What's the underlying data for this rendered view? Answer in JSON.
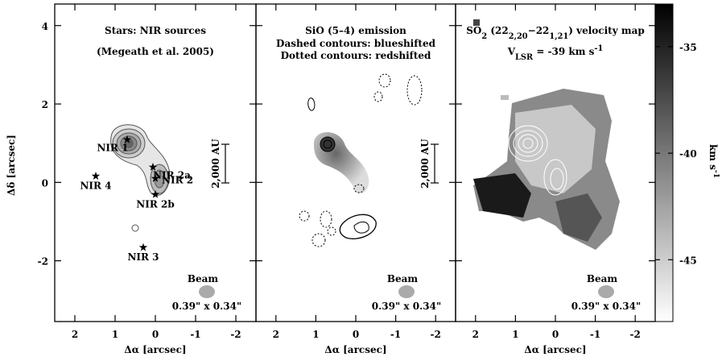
{
  "chart_data": [
    {
      "type": "map",
      "title": "Stars: NIR sources",
      "subtitle": "(Megeath et al. 2005)",
      "xlabel": "Δα [arcsec]",
      "ylabel": "Δδ [arcsec]",
      "xlim": [
        2.5,
        -2.5
      ],
      "xticks": [
        2,
        1,
        0,
        -1,
        -2
      ],
      "ylim": [
        -3.55,
        4.55
      ],
      "yticks": [
        -2,
        0,
        2,
        4
      ],
      "ytick_labels": true,
      "scale_bar": "2,000 AU",
      "beam": {
        "label": "Beam",
        "size": "0.39\" x 0.34\""
      },
      "sources": {
        "names": [
          "NIR 1",
          "NIR 2a",
          "NIR 2",
          "NIR 2b",
          "NIR 4",
          "NIR 3"
        ],
        "x": [
          0.7,
          0.06,
          0.0,
          0.0,
          1.48,
          0.3
        ],
        "y": [
          1.09,
          0.39,
          0.1,
          -0.31,
          0.16,
          -1.66
        ]
      }
    },
    {
      "type": "map",
      "title": "SiO (5–4) emission",
      "notes": [
        "Dashed contours: blueshifted",
        "Dotted contours: redshifted"
      ],
      "xlabel": "Δα [arcsec]",
      "xlim": [
        2.5,
        -2.5
      ],
      "xticks": [
        2,
        1,
        0,
        -1,
        -2
      ],
      "ylim": [
        -3.55,
        4.55
      ],
      "yticks": [
        -2,
        0,
        2,
        4
      ],
      "ytick_labels": false,
      "scale_bar": "2,000 AU",
      "beam": {
        "label": "Beam",
        "size": "0.39\" x 0.34\""
      }
    },
    {
      "type": "map",
      "title_parts": [
        {
          "text": "SO"
        },
        {
          "text": "2",
          "shift": "sub"
        },
        {
          "text": " (22"
        },
        {
          "text": "2,20",
          "shift": "sub"
        },
        {
          "text": "−22"
        },
        {
          "text": "1,21",
          "shift": "sub"
        },
        {
          "text": ") velocity map"
        }
      ],
      "subtitle_parts": [
        {
          "text": "V"
        },
        {
          "text": "LSR",
          "shift": "sub"
        },
        {
          "text": " = -39 km s"
        },
        {
          "text": "-1",
          "shift": "super"
        }
      ],
      "xlabel": "Δα [arcsec]",
      "xlim": [
        2.5,
        -2.5
      ],
      "xticks": [
        2,
        1,
        0,
        -1,
        -2
      ],
      "ylim": [
        -3.55,
        4.55
      ],
      "yticks": [
        -2,
        0,
        2,
        4
      ],
      "ytick_labels": false,
      "beam": {
        "label": "Beam",
        "size": "0.39\" x 0.34\""
      },
      "colorbar": {
        "label_parts": [
          {
            "text": "km s"
          },
          {
            "text": "-1",
            "shift": "super"
          }
        ],
        "ylim": [
          -47.9,
          -33.0
        ],
        "yticks": [
          -35,
          -40,
          -45
        ]
      }
    }
  ]
}
